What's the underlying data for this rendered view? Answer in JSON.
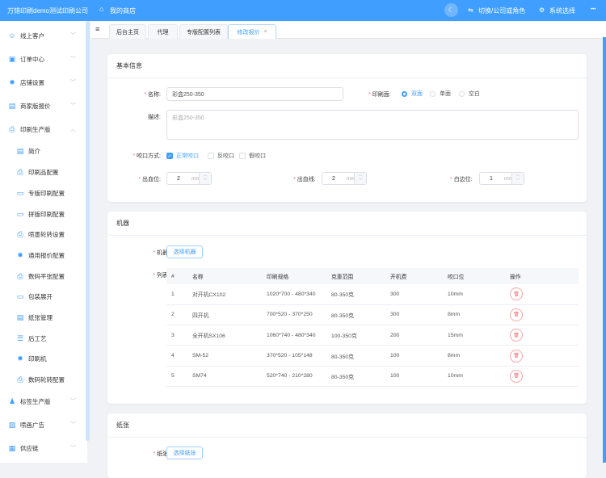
{
  "header": {
    "company": "万错印刷demo测试印刷公司",
    "shop": "我的商店",
    "switch": "切换/公司或角色",
    "system": "系统选择",
    "more": "•••",
    "colors": {
      "brand": "#409eff"
    }
  },
  "sidebar": {
    "items": [
      {
        "label": "线上客户",
        "icon": "users-icon",
        "level": "top",
        "expand": "down"
      },
      {
        "label": "订单中心",
        "icon": "bag-icon",
        "level": "top",
        "expand": "down"
      },
      {
        "label": "店铺设置",
        "icon": "gear-icon",
        "level": "top",
        "expand": "down"
      },
      {
        "label": "商家版报价",
        "icon": "document-icon",
        "level": "top",
        "expand": "down"
      },
      {
        "label": "印刷生产版",
        "icon": "printer-icon",
        "level": "top",
        "expand": "up"
      },
      {
        "label": "简介",
        "icon": "document-icon",
        "level": "sub"
      },
      {
        "label": "印刷品配置",
        "icon": "printer-icon",
        "level": "sub"
      },
      {
        "label": "专版印刷配置",
        "icon": "folder-icon",
        "level": "sub"
      },
      {
        "label": "拼版印刷配置",
        "icon": "folder-icon",
        "level": "sub"
      },
      {
        "label": "喷墨轮转设置",
        "icon": "printer-icon",
        "level": "sub"
      },
      {
        "label": "通用报价配置",
        "icon": "gear-icon",
        "level": "sub"
      },
      {
        "label": "数码平张配置",
        "icon": "printer-icon",
        "level": "sub"
      },
      {
        "label": "包装展开",
        "icon": "folder-icon",
        "level": "sub"
      },
      {
        "label": "纸张管理",
        "icon": "document-icon",
        "level": "sub"
      },
      {
        "label": "后工艺",
        "icon": "sliders-icon",
        "level": "sub"
      },
      {
        "label": "印刷机",
        "icon": "gear-icon",
        "level": "sub"
      },
      {
        "label": "数码轮转配置",
        "icon": "printer-icon",
        "level": "sub"
      },
      {
        "label": "标签生产版",
        "icon": "user-icon",
        "level": "top",
        "expand": "down"
      },
      {
        "label": "喷画广告",
        "icon": "image-icon",
        "level": "top",
        "expand": "down"
      },
      {
        "label": "供应链",
        "icon": "gift-icon",
        "level": "top",
        "expand": "down"
      }
    ]
  },
  "tabs": [
    {
      "label": "后台主页"
    },
    {
      "label": "代理"
    },
    {
      "label": "专版配置列表"
    },
    {
      "label": "修改报价",
      "active": true
    }
  ],
  "basic": {
    "title": "基本信息",
    "name_label": "名称:",
    "name_value": "彩盒250-350",
    "side_label": "印刷面:",
    "side_options": [
      "双面",
      "单面",
      "空白"
    ],
    "side_selected": "双面",
    "desc_label": "描述:",
    "desc_placeholder": "彩盒250-350",
    "bite_label": "咬口方式:",
    "bite_options": [
      "正常咬口",
      "反咬口",
      "假咬口"
    ],
    "bite_checked": [
      "正常咬口"
    ],
    "fields": [
      {
        "label": "出血位:",
        "value": "2",
        "unit": "mm"
      },
      {
        "label": "出血线:",
        "value": "2",
        "unit": "mm"
      },
      {
        "label": "白边位:",
        "value": "1",
        "unit": "mm"
      }
    ]
  },
  "machine": {
    "title": "机器",
    "machine_label": "机器:",
    "select_button": "选择机器",
    "list_label": "列表:",
    "columns": [
      "#",
      "名称",
      "印刷规格",
      "克重范围",
      "开机费",
      "咬口位",
      "操作"
    ],
    "rows": [
      [
        "1",
        "对开机CX102",
        "1020*700 - 480*340",
        "80-350克",
        "300",
        "10mm"
      ],
      [
        "2",
        "四开机",
        "700*520 - 370*250",
        "80-350克",
        "300",
        "8mm"
      ],
      [
        "3",
        "全开机SX106",
        "1060*740 - 480*340",
        "100-350克",
        "200",
        "15mm"
      ],
      [
        "4",
        "SM-52",
        "370*520 - 105*148",
        "80-350克",
        "100",
        "8mm"
      ],
      [
        "5",
        "SM74",
        "520*740 - 210*280",
        "80-350克",
        "100",
        "10mm"
      ]
    ]
  },
  "paper": {
    "title": "纸张",
    "paper_label": "纸张:",
    "select_button": "选择纸张"
  }
}
